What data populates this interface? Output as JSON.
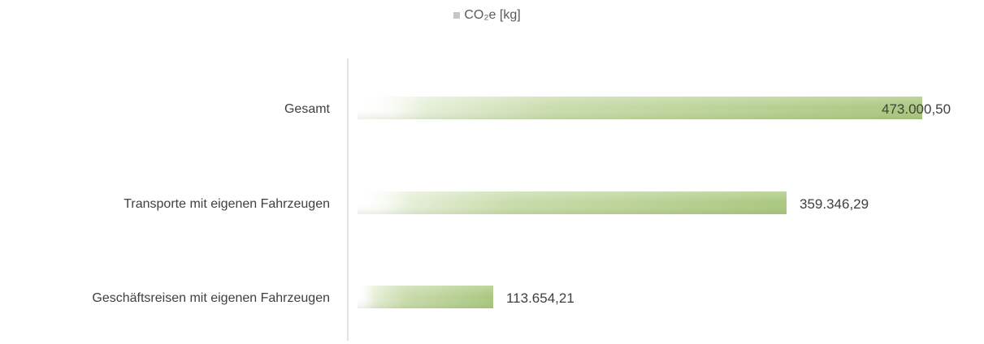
{
  "chart_data": {
    "type": "bar",
    "orientation": "horizontal",
    "legend": {
      "position": "top",
      "entries": [
        {
          "name": "CO₂e [kg]",
          "color": "#c6c6c6"
        }
      ]
    },
    "categories": [
      "Gesamt",
      "Transporte mit eigenen Fahrzeugen",
      "Geschäftsreisen mit eigenen Fahrzeugen"
    ],
    "series": [
      {
        "name": "CO₂e [kg]",
        "values": [
          473000.5,
          359346.29,
          113654.21
        ]
      }
    ],
    "data_labels": [
      "473.000,50",
      "359.346,29",
      "113.654,21"
    ],
    "xlim": [
      0,
      473000.5
    ],
    "grid": false,
    "colors": {
      "bar_start": "#ffffff",
      "bar_end": "#a9c77e",
      "axis": "#d9d9d9"
    }
  }
}
